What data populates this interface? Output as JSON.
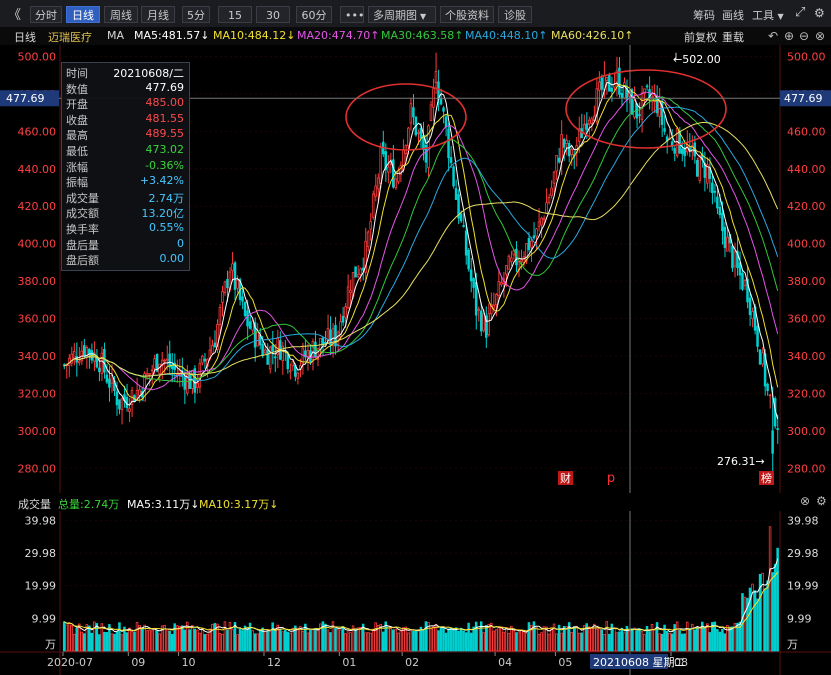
{
  "toolbar": {
    "back_icon": "double-chevron-left-icon",
    "periods": [
      "分时",
      "日线",
      "周线",
      "月线",
      "5分",
      "15分",
      "30分",
      "60分"
    ],
    "active_period": "日线",
    "more_label": "•••",
    "multi_period": "多周期图",
    "stock_info": "个股资料",
    "diagnose": "诊股",
    "chips": "筹码",
    "draw": "画线",
    "tools": "工具"
  },
  "ma_header": {
    "period": "日线",
    "stock_name": "迈瑞医疗",
    "ma_label": "MA",
    "ma5": "MA5:481.57↓",
    "ma10": "MA10:484.12↓",
    "ma20": "MA20:474.70↑",
    "ma30": "MA30:463.58↑",
    "ma40": "MA40:448.10↑",
    "ma60": "MA60:426.10↑",
    "fq": "前复权",
    "refresh": "重载"
  },
  "colors": {
    "ma5": "#ffffff",
    "ma10": "#f0e130",
    "ma20": "#e455e8",
    "ma30": "#32c83c",
    "ma40": "#2aa8e0",
    "ma60": "#e8e060",
    "up": "#ff3b3b",
    "down": "#00d0d0",
    "axis": "#ff4040",
    "circle": "#e03030"
  },
  "info_panel": {
    "rows": [
      {
        "k": "时间",
        "v": "20210608/二",
        "c": "#ffffff"
      },
      {
        "k": "数值",
        "v": "477.69",
        "c": "#ffffff"
      },
      {
        "k": "开盘",
        "v": "485.00",
        "c": "#ff4a4a"
      },
      {
        "k": "收盘",
        "v": "481.55",
        "c": "#ff4a4a"
      },
      {
        "k": "最高",
        "v": "489.55",
        "c": "#ff4a4a"
      },
      {
        "k": "最低",
        "v": "473.02",
        "c": "#38d638"
      },
      {
        "k": "涨幅",
        "v": "-0.36%",
        "c": "#38d638"
      },
      {
        "k": "振幅",
        "v": "+3.42%",
        "c": "#45c8ff"
      },
      {
        "k": "成交量",
        "v": "2.74万",
        "c": "#45c8ff"
      },
      {
        "k": "成交额",
        "v": "13.20亿",
        "c": "#45c8ff"
      },
      {
        "k": "换手率",
        "v": "0.55%",
        "c": "#45c8ff"
      },
      {
        "k": "盘后量",
        "v": "0",
        "c": "#45c8ff"
      },
      {
        "k": "盘后额",
        "v": "0.00",
        "c": "#45c8ff"
      }
    ]
  },
  "crosshair_value": "477.69",
  "markers": {
    "high_label": "←502.00",
    "low_label": "276.31→",
    "cai": "财",
    "p": "p",
    "bang": "榜"
  },
  "volume_header": {
    "title": "成交量",
    "total": "总量:2.74万",
    "ma5": "MA5:3.11万↓",
    "ma10": "MA10:3.17万↓"
  },
  "bottom_label": "20210608 星期二",
  "chart_data": [
    {
      "type": "candlestick",
      "y_ticks": [
        280,
        300,
        320,
        340,
        360,
        380,
        400,
        420,
        440,
        460,
        480,
        500
      ],
      "y_tick_labels": [
        "280.00",
        "300.00",
        "320.00",
        "340.00",
        "360.00",
        "380.00",
        "400.00",
        "420.00",
        "440.00",
        "460.00",
        "480.00",
        "500.00"
      ],
      "ylim": [
        270,
        504
      ],
      "x_ticks": [
        "2020-07",
        "09",
        "10",
        "12",
        "01",
        "02",
        "04",
        "05",
        "08"
      ],
      "moving_averages": [
        "MA5",
        "MA10",
        "MA20",
        "MA30",
        "MA40",
        "MA60"
      ],
      "price_anchors": [
        {
          "t": 0,
          "c": 335
        },
        {
          "t": 8,
          "c": 345
        },
        {
          "t": 14,
          "c": 338
        },
        {
          "t": 22,
          "c": 315
        },
        {
          "t": 30,
          "c": 322
        },
        {
          "t": 38,
          "c": 340
        },
        {
          "t": 44,
          "c": 332
        },
        {
          "t": 52,
          "c": 325
        },
        {
          "t": 60,
          "c": 350
        },
        {
          "t": 66,
          "c": 388
        },
        {
          "t": 72,
          "c": 360
        },
        {
          "t": 80,
          "c": 342
        },
        {
          "t": 86,
          "c": 345
        },
        {
          "t": 92,
          "c": 335
        },
        {
          "t": 100,
          "c": 345
        },
        {
          "t": 108,
          "c": 350
        },
        {
          "t": 114,
          "c": 380
        },
        {
          "t": 120,
          "c": 395
        },
        {
          "t": 126,
          "c": 445
        },
        {
          "t": 132,
          "c": 435
        },
        {
          "t": 138,
          "c": 470
        },
        {
          "t": 144,
          "c": 445
        },
        {
          "t": 148,
          "c": 490
        },
        {
          "t": 152,
          "c": 460
        },
        {
          "t": 156,
          "c": 425
        },
        {
          "t": 160,
          "c": 395
        },
        {
          "t": 164,
          "c": 365
        },
        {
          "t": 168,
          "c": 355
        },
        {
          "t": 172,
          "c": 370
        },
        {
          "t": 176,
          "c": 385
        },
        {
          "t": 182,
          "c": 395
        },
        {
          "t": 188,
          "c": 405
        },
        {
          "t": 194,
          "c": 430
        },
        {
          "t": 198,
          "c": 455
        },
        {
          "t": 202,
          "c": 445
        },
        {
          "t": 208,
          "c": 468
        },
        {
          "t": 214,
          "c": 482
        },
        {
          "t": 220,
          "c": 488
        },
        {
          "t": 224,
          "c": 478
        },
        {
          "t": 228,
          "c": 470
        },
        {
          "t": 232,
          "c": 478
        },
        {
          "t": 236,
          "c": 475
        },
        {
          "t": 240,
          "c": 455
        },
        {
          "t": 244,
          "c": 455
        },
        {
          "t": 248,
          "c": 450
        },
        {
          "t": 252,
          "c": 442
        },
        {
          "t": 256,
          "c": 440
        },
        {
          "t": 260,
          "c": 415
        },
        {
          "t": 264,
          "c": 400
        },
        {
          "t": 268,
          "c": 385
        },
        {
          "t": 272,
          "c": 375
        },
        {
          "t": 276,
          "c": 350
        },
        {
          "t": 280,
          "c": 320
        },
        {
          "t": 284,
          "c": 305
        }
      ],
      "high_value": 502.0,
      "low_value": 276.31,
      "crosshair_value": 477.69
    },
    {
      "type": "bar",
      "y_tick_labels": [
        "9.99",
        "19.99",
        "29.98",
        "39.98"
      ],
      "y_ticks": [
        9.99,
        19.99,
        29.98,
        39.98
      ],
      "ylim": [
        0,
        41
      ],
      "unit": "万",
      "volume_ma": [
        "MA5",
        "MA10"
      ]
    }
  ]
}
